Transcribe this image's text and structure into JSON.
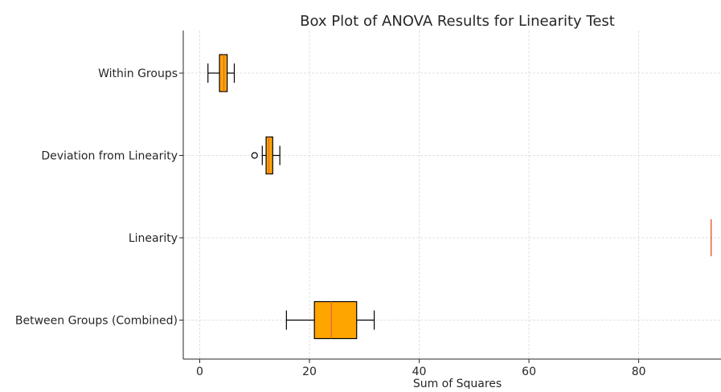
{
  "chart_data": {
    "type": "boxplot",
    "orientation": "horizontal",
    "title": "Box Plot of ANOVA Results for Linearity Test",
    "xlabel": "Sum of Squares",
    "ylabel": "",
    "xlim": [
      -3,
      95
    ],
    "xticks": [
      0,
      20,
      40,
      60,
      80
    ],
    "grid": true,
    "colors": {
      "box_fill": "#FFA500",
      "box_edge": "#000000",
      "median": "#E8623A",
      "grid": "#d9d9d9",
      "axis": "#262626"
    },
    "categories": [
      "Within Groups",
      "Deviation from Linearity",
      "Linearity",
      "Between Groups (Combined)"
    ],
    "boxes": [
      {
        "category": "Within Groups",
        "whisker_low": 1.5,
        "q1": 3.6,
        "median": 4.4,
        "q3": 5.0,
        "whisker_high": 6.3,
        "outliers": []
      },
      {
        "category": "Deviation from Linearity",
        "whisker_low": 11.4,
        "q1": 12.1,
        "median": 12.6,
        "q3": 13.3,
        "whisker_high": 14.6,
        "outliers": [
          10.0
        ]
      },
      {
        "category": "Linearity",
        "whisker_low": 93.2,
        "q1": 93.2,
        "median": 93.2,
        "q3": 93.2,
        "whisker_high": 93.2,
        "outliers": []
      },
      {
        "category": "Between Groups (Combined)",
        "whisker_low": 15.8,
        "q1": 20.9,
        "median": 24.0,
        "q3": 28.6,
        "whisker_high": 31.8,
        "outliers": []
      }
    ]
  }
}
